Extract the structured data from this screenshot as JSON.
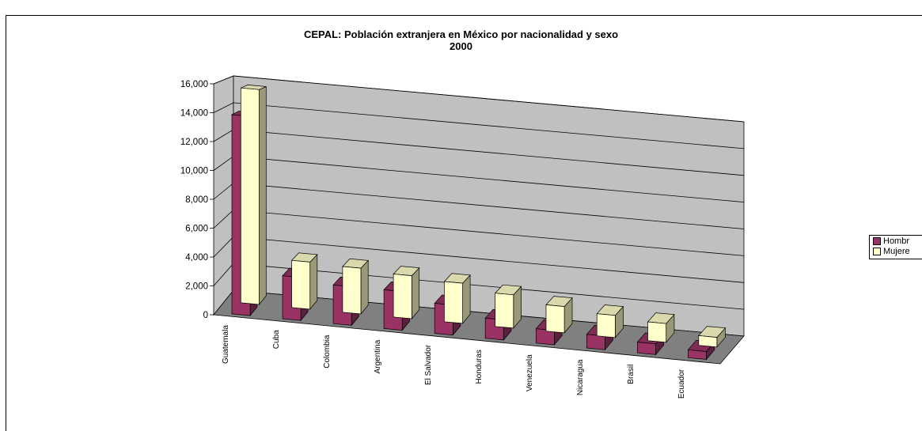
{
  "chart_data": {
    "type": "bar",
    "title": "CEPAL: Población extranjera en México por nacionalidad y sexo",
    "subtitle": "2000",
    "categories": [
      "Guatemala",
      "Cuba",
      "Colombia",
      "Argentina",
      "El Salvador",
      "Honduras",
      "Venezuela",
      "Nicaragua",
      "Brasil",
      "Ecuador"
    ],
    "series": [
      {
        "name": "Hombres",
        "color": "#993366",
        "values": [
          13900,
          3000,
          2700,
          2700,
          2100,
          1400,
          1000,
          950,
          750,
          550
        ]
      },
      {
        "name": "Mujeres",
        "color": "#FFFFCC",
        "values": [
          15500,
          3400,
          3300,
          3100,
          2900,
          2400,
          1900,
          1600,
          1350,
          700
        ]
      }
    ],
    "ylim": [
      0,
      16000
    ],
    "yticks": [
      "0",
      "2,000",
      "4,000",
      "6,000",
      "8,000",
      "10,000",
      "12,000",
      "14,000",
      "16,000"
    ],
    "grid": true,
    "legend_position": "right",
    "legend_labels": [
      "Hombr",
      "Mujere"
    ],
    "wall_color": "#C0C0C0",
    "floor_color": "#808080"
  }
}
